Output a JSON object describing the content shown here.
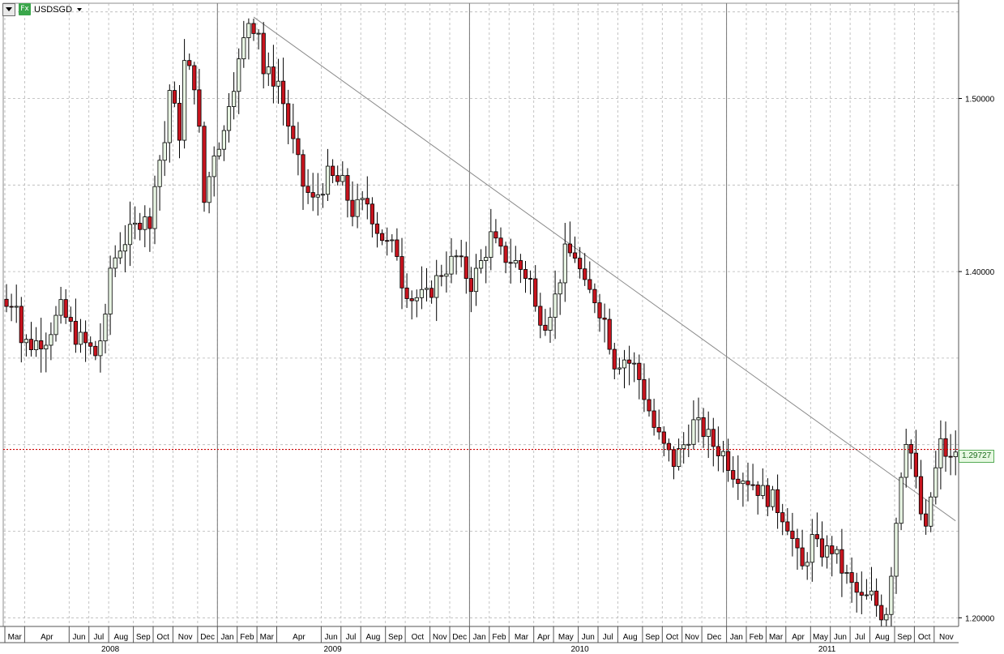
{
  "toolbar": {
    "menu_icon": "dropdown-triangle-icon",
    "fx_badge": "Fx",
    "symbol": "USDSGD"
  },
  "last_price_label": "1.29727",
  "colors": {
    "up_fill": "#e8f5e3",
    "down_fill": "#c8141e",
    "last_price_line": "#cc0000",
    "trendline": "#8a8a8a",
    "grid": "#b5b5b5"
  },
  "chart_data": {
    "type": "candlestick",
    "title": "USDSGD",
    "timeframe_note": "",
    "ylim": [
      1.195,
      1.555
    ],
    "y_ticks": [
      "1.50000",
      "1.40000",
      "1.20000"
    ],
    "y_tick_values": [
      1.5,
      1.4,
      1.2
    ],
    "last_price": 1.29727,
    "grid": true,
    "months": [
      {
        "label": "Mar",
        "index": 0
      },
      {
        "label": "Apr",
        "index": 4
      },
      {
        "label": "Jun",
        "index": 13
      },
      {
        "label": "Jul",
        "index": 17
      },
      {
        "label": "Aug",
        "index": 21
      },
      {
        "label": "Sep",
        "index": 26
      },
      {
        "label": "Oct",
        "index": 30
      },
      {
        "label": "Nov",
        "index": 34
      },
      {
        "label": "Dec",
        "index": 39
      },
      {
        "label": "Jan",
        "index": 43
      },
      {
        "label": "Feb",
        "index": 47
      },
      {
        "label": "Mar",
        "index": 51
      },
      {
        "label": "Apr",
        "index": 55
      },
      {
        "label": "Jun",
        "index": 64
      },
      {
        "label": "Jul",
        "index": 68
      },
      {
        "label": "Aug",
        "index": 72
      },
      {
        "label": "Sep",
        "index": 77
      },
      {
        "label": "Oct",
        "index": 81
      },
      {
        "label": "Nov",
        "index": 86
      },
      {
        "label": "Dec",
        "index": 90
      },
      {
        "label": "Jan",
        "index": 94
      },
      {
        "label": "Feb",
        "index": 98
      },
      {
        "label": "Mar",
        "index": 102
      },
      {
        "label": "Apr",
        "index": 107
      },
      {
        "label": "May",
        "index": 111
      },
      {
        "label": "Jun",
        "index": 116
      },
      {
        "label": "Jul",
        "index": 120
      },
      {
        "label": "Aug",
        "index": 124
      },
      {
        "label": "Sep",
        "index": 129
      },
      {
        "label": "Oct",
        "index": 133
      },
      {
        "label": "Nov",
        "index": 137
      },
      {
        "label": "Dec",
        "index": 141
      },
      {
        "label": "Jan",
        "index": 146
      },
      {
        "label": "Feb",
        "index": 150
      },
      {
        "label": "Mar",
        "index": 154
      },
      {
        "label": "Apr",
        "index": 158
      },
      {
        "label": "May",
        "index": 163
      },
      {
        "label": "Jun",
        "index": 167
      },
      {
        "label": "Jul",
        "index": 171
      },
      {
        "label": "Aug",
        "index": 175
      },
      {
        "label": "Sep",
        "index": 180
      },
      {
        "label": "Oct",
        "index": 184
      },
      {
        "label": "Nov",
        "index": 188
      }
    ],
    "years": [
      {
        "label": "2008",
        "index": 21
      },
      {
        "label": "2009",
        "index": 66
      },
      {
        "label": "2010",
        "index": 116
      },
      {
        "label": "2011",
        "index": 166
      }
    ],
    "year_boundaries": [
      43,
      94,
      146
    ],
    "trendline": {
      "from": {
        "index": 50,
        "value": 1.547
      },
      "to": {
        "index": 192,
        "value": 1.256
      }
    },
    "anchors": [
      [
        0,
        1.38
      ],
      [
        2,
        1.385
      ],
      [
        3,
        1.36
      ],
      [
        5,
        1.358
      ],
      [
        8,
        1.362
      ],
      [
        11,
        1.378
      ],
      [
        14,
        1.363
      ],
      [
        17,
        1.355
      ],
      [
        18,
        1.352
      ],
      [
        20,
        1.37
      ],
      [
        21,
        1.402
      ],
      [
        23,
        1.415
      ],
      [
        26,
        1.425
      ],
      [
        28,
        1.435
      ],
      [
        29,
        1.422
      ],
      [
        30,
        1.455
      ],
      [
        32,
        1.475
      ],
      [
        33,
        1.505
      ],
      [
        35,
        1.48
      ],
      [
        36,
        1.52
      ],
      [
        38,
        1.51
      ],
      [
        39,
        1.48
      ],
      [
        40,
        1.44
      ],
      [
        42,
        1.47
      ],
      [
        44,
        1.48
      ],
      [
        45,
        1.5
      ],
      [
        47,
        1.52
      ],
      [
        49,
        1.545
      ],
      [
        51,
        1.54
      ],
      [
        52,
        1.515
      ],
      [
        55,
        1.51
      ],
      [
        57,
        1.485
      ],
      [
        60,
        1.45
      ],
      [
        62,
        1.44
      ],
      [
        65,
        1.455
      ],
      [
        68,
        1.45
      ],
      [
        70,
        1.435
      ],
      [
        73,
        1.44
      ],
      [
        75,
        1.425
      ],
      [
        77,
        1.415
      ],
      [
        79,
        1.412
      ],
      [
        80,
        1.395
      ],
      [
        82,
        1.385
      ],
      [
        85,
        1.385
      ],
      [
        88,
        1.4
      ],
      [
        91,
        1.408
      ],
      [
        94,
        1.393
      ],
      [
        96,
        1.405
      ],
      [
        98,
        1.42
      ],
      [
        100,
        1.41
      ],
      [
        103,
        1.405
      ],
      [
        106,
        1.395
      ],
      [
        107,
        1.378
      ],
      [
        109,
        1.372
      ],
      [
        111,
        1.385
      ],
      [
        113,
        1.41
      ],
      [
        115,
        1.41
      ],
      [
        117,
        1.39
      ],
      [
        119,
        1.385
      ],
      [
        121,
        1.372
      ],
      [
        122,
        1.36
      ],
      [
        123,
        1.348
      ],
      [
        125,
        1.35
      ],
      [
        127,
        1.345
      ],
      [
        128,
        1.338
      ],
      [
        130,
        1.32
      ],
      [
        131,
        1.31
      ],
      [
        133,
        1.298
      ],
      [
        135,
        1.29
      ],
      [
        137,
        1.3
      ],
      [
        139,
        1.312
      ],
      [
        141,
        1.308
      ],
      [
        143,
        1.3
      ],
      [
        145,
        1.295
      ],
      [
        147,
        1.285
      ],
      [
        149,
        1.282
      ],
      [
        151,
        1.278
      ],
      [
        153,
        1.272
      ],
      [
        155,
        1.268
      ],
      [
        157,
        1.26
      ],
      [
        158,
        1.255
      ],
      [
        160,
        1.235
      ],
      [
        161,
        1.228
      ],
      [
        163,
        1.245
      ],
      [
        164,
        1.24
      ],
      [
        166,
        1.238
      ],
      [
        167,
        1.24
      ],
      [
        169,
        1.228
      ],
      [
        171,
        1.218
      ],
      [
        173,
        1.21
      ],
      [
        175,
        1.212
      ],
      [
        177,
        1.203
      ],
      [
        178,
        1.205
      ],
      [
        179,
        1.228
      ],
      [
        181,
        1.285
      ],
      [
        182,
        1.305
      ],
      [
        183,
        1.295
      ],
      [
        185,
        1.26
      ],
      [
        186,
        1.248
      ],
      [
        187,
        1.27
      ],
      [
        189,
        1.3
      ],
      [
        191,
        1.29
      ],
      [
        192,
        1.297
      ]
    ]
  }
}
